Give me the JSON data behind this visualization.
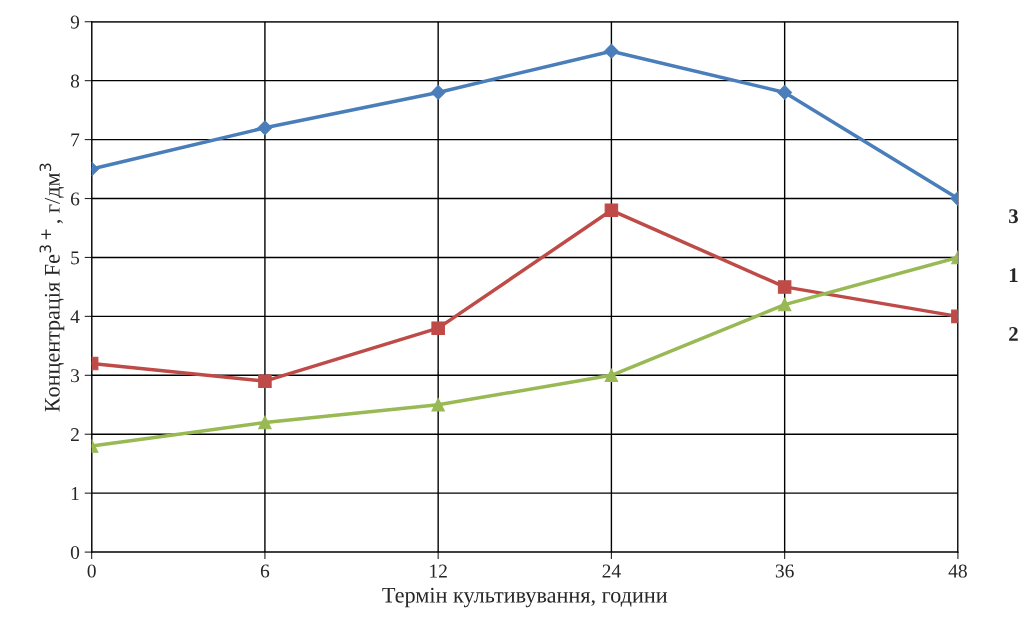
{
  "chart_data": {
    "type": "line",
    "xlabel": "Термін культивування, години",
    "ylabel": "Концентрація Fe$^{3+}$, г/дм$^{3}$",
    "categories": [
      "0",
      "6",
      "12",
      "24",
      "36",
      "48"
    ],
    "series": [
      {
        "name": "3",
        "color": "#4a7ebb",
        "marker": "diamond",
        "values": [
          6.5,
          7.2,
          7.8,
          8.5,
          7.8,
          6.0
        ]
      },
      {
        "name": "2",
        "color": "#be4b48",
        "marker": "square",
        "values": [
          3.2,
          2.9,
          3.8,
          5.8,
          4.5,
          4.0
        ]
      },
      {
        "name": "1",
        "color": "#98b954",
        "marker": "triangle",
        "values": [
          1.8,
          2.2,
          2.5,
          3.0,
          4.2,
          5.0
        ]
      }
    ],
    "ylim": [
      0,
      9
    ],
    "yticks": [
      0,
      1,
      2,
      3,
      4,
      5,
      6,
      7,
      8,
      9
    ],
    "grid": true,
    "legend": false,
    "line_style": "solid"
  }
}
